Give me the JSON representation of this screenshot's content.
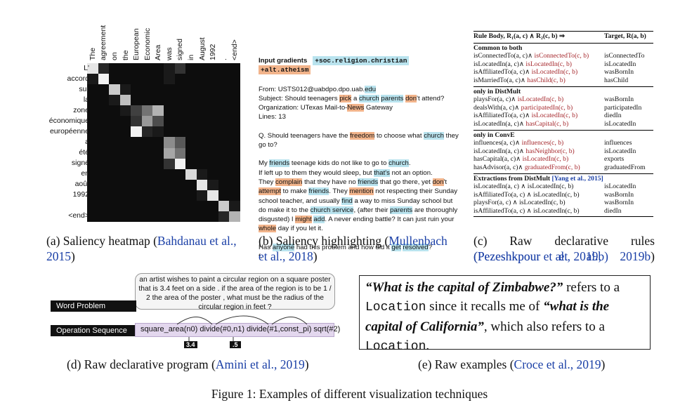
{
  "heatmap": {
    "source_tokens": [
      "The",
      "agreement",
      "on",
      "the",
      "European",
      "Economic",
      "Area",
      "was",
      "signed",
      "in",
      "August",
      "1992",
      ".",
      "<end>"
    ],
    "target_tokens": [
      "L'",
      "accord",
      "sur",
      "la",
      "zone",
      "économique",
      "européenne",
      "a",
      "été",
      "signé",
      "en",
      "août",
      "1992",
      ".",
      "<end>"
    ],
    "weights": [
      [
        0.9,
        0.15,
        0.05,
        0.05,
        0.05,
        0.05,
        0.05,
        0.1,
        0.2,
        0.05,
        0.05,
        0.05,
        0.05,
        0.05
      ],
      [
        0.1,
        0.95,
        0.05,
        0.05,
        0.05,
        0.05,
        0.05,
        0.1,
        0.05,
        0.05,
        0.05,
        0.05,
        0.05,
        0.05
      ],
      [
        0.05,
        0.05,
        0.8,
        0.1,
        0.05,
        0.05,
        0.05,
        0.05,
        0.05,
        0.05,
        0.05,
        0.05,
        0.05,
        0.05
      ],
      [
        0.05,
        0.05,
        0.1,
        0.75,
        0.05,
        0.05,
        0.05,
        0.05,
        0.05,
        0.05,
        0.05,
        0.05,
        0.05,
        0.05
      ],
      [
        0.05,
        0.05,
        0.05,
        0.1,
        0.25,
        0.45,
        0.7,
        0.05,
        0.05,
        0.05,
        0.05,
        0.05,
        0.05,
        0.05
      ],
      [
        0.05,
        0.05,
        0.05,
        0.05,
        0.2,
        0.6,
        0.3,
        0.05,
        0.05,
        0.05,
        0.05,
        0.05,
        0.05,
        0.05
      ],
      [
        0.05,
        0.05,
        0.05,
        0.05,
        0.95,
        0.15,
        0.1,
        0.05,
        0.05,
        0.05,
        0.05,
        0.05,
        0.05,
        0.05
      ],
      [
        0.05,
        0.05,
        0.05,
        0.05,
        0.05,
        0.05,
        0.05,
        0.55,
        0.35,
        0.05,
        0.05,
        0.05,
        0.05,
        0.05
      ],
      [
        0.05,
        0.05,
        0.05,
        0.05,
        0.05,
        0.05,
        0.05,
        0.65,
        0.45,
        0.05,
        0.05,
        0.05,
        0.05,
        0.05
      ],
      [
        0.05,
        0.05,
        0.05,
        0.05,
        0.05,
        0.05,
        0.05,
        0.2,
        0.95,
        0.05,
        0.05,
        0.05,
        0.05,
        0.05
      ],
      [
        0.05,
        0.05,
        0.05,
        0.05,
        0.05,
        0.05,
        0.05,
        0.05,
        0.05,
        0.85,
        0.1,
        0.05,
        0.05,
        0.05
      ],
      [
        0.05,
        0.05,
        0.05,
        0.05,
        0.05,
        0.05,
        0.05,
        0.05,
        0.05,
        0.05,
        0.9,
        0.1,
        0.05,
        0.05
      ],
      [
        0.05,
        0.05,
        0.05,
        0.05,
        0.05,
        0.05,
        0.05,
        0.05,
        0.05,
        0.05,
        0.1,
        0.9,
        0.05,
        0.05
      ],
      [
        0.05,
        0.05,
        0.05,
        0.05,
        0.05,
        0.05,
        0.05,
        0.05,
        0.05,
        0.05,
        0.05,
        0.05,
        0.8,
        0.1
      ],
      [
        0.05,
        0.05,
        0.05,
        0.05,
        0.05,
        0.05,
        0.05,
        0.05,
        0.05,
        0.05,
        0.05,
        0.05,
        0.15,
        0.7
      ]
    ]
  },
  "captions": {
    "a_text": "(a) Saliency heatmap (",
    "a_cite": "Bahdanau et al., 2015",
    "a_end": ")",
    "b_text": "(b) Saliency highlighting (",
    "b_cite": "Mullenbach et al., 2018",
    "b_end": ")",
    "c_text": "(c) Raw declarative rules (",
    "c_cite": "Pezeshkpour et al., 2019b",
    "c_end": ")",
    "d_text": "(d) Raw declarative program (",
    "d_cite": "Amini et al., 2019",
    "d_end": ")",
    "e_text": "(e) Raw examples (",
    "e_cite": "Croce et al., 2019",
    "e_end": ")",
    "figure": "Figure 1: Examples of different visualization techniques"
  },
  "panel_b": {
    "header": "Input gradients",
    "tag_blue": "+soc.religion.christian",
    "tag_orange": "+alt.atheism"
  },
  "panel_c": {
    "head_left": "Rule Body, R₁(a, c) ∧ R₂(c, b) ⇒",
    "head_right": "Target, R(a, b)",
    "sections": [
      {
        "title": "Common to both",
        "rows": [
          {
            "a": "isConnectedTo(a, c)∧ ",
            "b": "isConnectedTo(c, b)",
            "t": "isConnectedTo"
          },
          {
            "a": "isLocatedIn(a, c)∧ ",
            "b": "isLocatedIn(c, b)",
            "t": "isLocatedIn"
          },
          {
            "a": "isAffiliatedTo(a, c)∧ ",
            "b": "isLocatedIn(c, b)",
            "t": "wasBornIn"
          },
          {
            "a": "isMarriedTo(a, c)∧ ",
            "b": "hasChild(c, b)",
            "t": "hasChild"
          }
        ]
      },
      {
        "title": "only in DistMult",
        "rows": [
          {
            "a": "playsFor(a, c)∧ ",
            "b": "isLocatedIn(c, b)",
            "t": "wasBornIn"
          },
          {
            "a": "dealsWith(a, c)∧ ",
            "b": "participatedIn(c, b)",
            "t": "participatedIn"
          },
          {
            "a": "isAffiliatedTo(a, c)∧ ",
            "b": "isLocatedIn(c, b)",
            "t": "diedIn"
          },
          {
            "a": "isLocatedIn(a, c)∧ ",
            "b": "hasCapital(c, b)",
            "t": "isLocatedIn"
          }
        ]
      },
      {
        "title": "only in ConvE",
        "rows": [
          {
            "a": "influences(a, c)∧ ",
            "b": "influences(c, b)",
            "t": "influences"
          },
          {
            "a": "isLocatedIn(a, c)∧ ",
            "b": "hasNeighbor(c, b)",
            "t": "isLocatedIn"
          },
          {
            "a": "hasCapital(a, c)∧ ",
            "b": "isLocatedIn(c, b)",
            "t": "exports"
          },
          {
            "a": "hasAdvisor(a, c)∧ ",
            "b": "graduatedFrom(c, b)",
            "t": "graduatedFrom"
          }
        ]
      },
      {
        "title": "Extractions from DistMult ",
        "cite": "[Yang et al., 2015]",
        "rows": [
          {
            "a": "isLocatedIn(a, c) ∧ isLocatedIn(c, b)",
            "b": "",
            "t": "isLocatedIn"
          },
          {
            "a": "isAffiliatedTo(a, c) ∧ isLocatedIn(c, b)",
            "b": "",
            "t": "wasBornIn"
          },
          {
            "a": "playsFor(a, c) ∧ isLocatedIn(c, b)",
            "b": "",
            "t": "wasBornIn"
          },
          {
            "a": "isAffiliatedTo(a, c) ∧ isLocatedIn(c, b)",
            "b": "",
            "t": "diedIn"
          }
        ]
      }
    ]
  },
  "panel_d": {
    "problem": "an artist wishes to paint a circular region on a square poster that is 3.4 feet on a side . if the area of the region is to be 1 / 2 the area of the poster , what must be the radius of the circular region in feet ?",
    "label_problem": "Word Problem",
    "label_ops": "Operation Sequence",
    "ops": "square_area(n0) divide(#0,n1) divide(#1,const_pi) sqrt(#2)",
    "arg1": "3.4",
    "arg2": ".5"
  },
  "panel_e": {
    "q1": "“What is the capital of Zimbabwe?”",
    "t1": " refers to a ",
    "m1": "Location",
    "t2": " since it recalls me of ",
    "q2": "“what is the capital of California”",
    "t3": ", which also refers to a ",
    "m2": "Location",
    "t4": "."
  },
  "colors": {
    "citation": "#1a3fa6",
    "rule_red": "#a5262b",
    "highlight_blue": "#b9e3ee",
    "highlight_orange": "#f2b48b"
  }
}
